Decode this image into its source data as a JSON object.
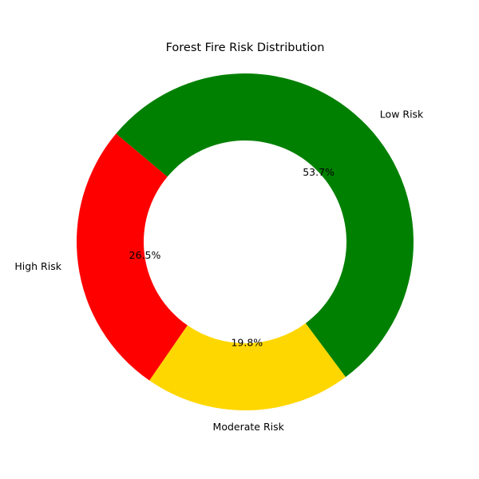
{
  "chart_data": {
    "type": "pie",
    "style": "donut",
    "title": "Forest Fire Risk Distribution",
    "slices": [
      {
        "label": "High Risk",
        "value": 26.5,
        "display": "26.5%",
        "color": "#ff0000"
      },
      {
        "label": "Moderate Risk",
        "value": 19.8,
        "display": "19.8%",
        "color": "#ffd700"
      },
      {
        "label": "Low Risk",
        "value": 53.7,
        "display": "53.7%",
        "color": "#008000"
      }
    ],
    "start_angle_deg": 140,
    "direction": "counterclockwise"
  }
}
